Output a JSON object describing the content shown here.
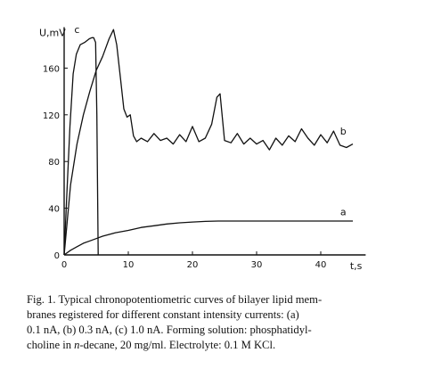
{
  "chart_data": {
    "type": "line",
    "title": "",
    "xlabel": "t,s",
    "ylabel": "U,mV",
    "xlim": [
      0,
      47
    ],
    "ylim": [
      0,
      195
    ],
    "x_ticks": [
      0,
      10,
      20,
      30,
      40
    ],
    "x_tick_labels": [
      "0",
      "10",
      "20",
      "30",
      "40"
    ],
    "y_ticks": [
      0,
      40,
      80,
      120,
      160
    ],
    "y_tick_labels": [
      "0",
      "40",
      "80",
      "120",
      "160"
    ],
    "grid": false,
    "legend": "none",
    "series": [
      {
        "name": "a",
        "x": [
          0,
          1,
          2,
          3,
          4,
          5,
          6,
          8,
          10,
          12,
          14,
          16,
          18,
          20,
          22,
          24,
          26,
          28,
          30,
          35,
          40,
          45
        ],
        "y": [
          0,
          4,
          7,
          10,
          12,
          14,
          16,
          19,
          21,
          23.5,
          25,
          26.5,
          27.5,
          28.2,
          28.7,
          29,
          29,
          29,
          29,
          29,
          29,
          29
        ]
      },
      {
        "name": "b",
        "x": [
          0,
          1,
          2,
          3,
          4,
          5,
          6,
          7,
          7.7,
          8.2,
          8.8,
          9.3,
          9.8,
          10.3,
          10.8,
          11.3,
          12,
          13,
          14,
          15,
          16,
          17,
          18,
          19,
          20,
          21,
          22,
          23,
          23.8,
          24.3,
          25,
          26,
          27,
          28,
          29,
          30,
          31,
          32,
          33,
          34,
          35,
          36,
          37,
          38,
          39,
          40,
          41,
          42,
          43,
          44,
          45
        ],
        "y": [
          0,
          60,
          95,
          120,
          140,
          158,
          170,
          185,
          193,
          180,
          150,
          125,
          118,
          120,
          102,
          97,
          100,
          97,
          104,
          98,
          100,
          95,
          103,
          97,
          110,
          97,
          100,
          112,
          135,
          138,
          98,
          96,
          104,
          95,
          100,
          95,
          98,
          90,
          100,
          94,
          102,
          97,
          108,
          100,
          94,
          103,
          96,
          106,
          94,
          92,
          95
        ]
      },
      {
        "name": "c",
        "x": [
          0,
          0.4,
          0.9,
          1.4,
          1.9,
          2.5,
          3.2,
          3.9,
          4.3,
          4.6,
          4.9,
          5.1,
          5.3
        ],
        "y": [
          0,
          50,
          110,
          155,
          172,
          180,
          182,
          185,
          186,
          186,
          182,
          120,
          0
        ]
      }
    ]
  },
  "caption": {
    "lines": [
      [
        "Fig. 1. Typical chronopotentiometric curves of bilayer lipid mem-"
      ],
      [
        "branes registered for different constant intensity currents: (a)"
      ],
      [
        "0.1 nA, (b) 0.3 nA, (c) 1.0 nA. Forming solution: phosphatidyl-"
      ],
      [
        "choline in ",
        {
          "italic": "n"
        },
        "-decane, 20 mg/ml. Electrolyte: 0.1 M KCl."
      ]
    ]
  }
}
